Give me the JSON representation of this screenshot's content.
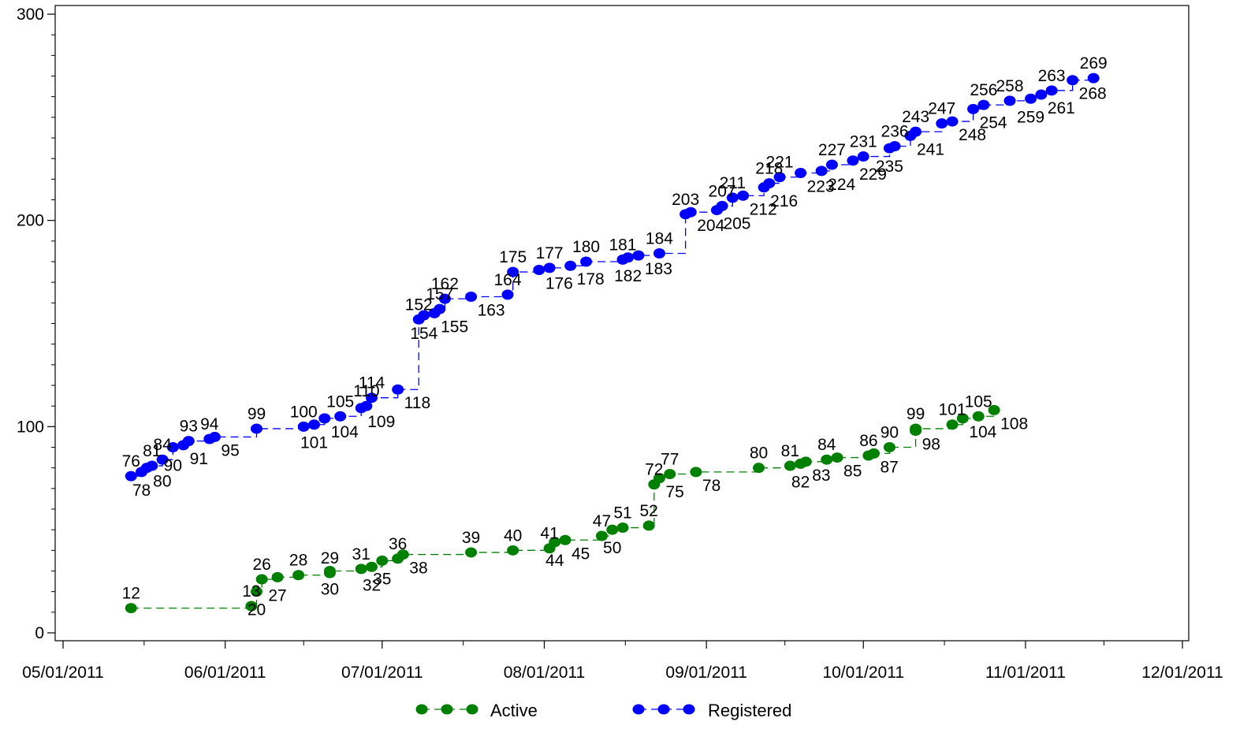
{
  "chart_data": {
    "type": "line",
    "title": "",
    "xlabel": "",
    "ylabel": "",
    "x_ticks": [
      "05/01/2011",
      "06/01/2011",
      "07/01/2011",
      "08/01/2011",
      "09/01/2011",
      "10/01/2011",
      "11/01/2011",
      "12/01/2011"
    ],
    "y_ticks": [
      "0",
      "100",
      "200",
      "300"
    ],
    "xlim": [
      "2011-05-01",
      "2011-12-01"
    ],
    "ylim": [
      0,
      300
    ],
    "step": true,
    "legend_position": "bottom",
    "series": [
      {
        "name": "Active",
        "color": "#008000",
        "points": [
          [
            "2011-05-14",
            12,
            "12",
            "above"
          ],
          [
            "2011-06-06",
            13,
            "13",
            "above"
          ],
          [
            "2011-06-07",
            20,
            "20",
            "below"
          ],
          [
            "2011-06-08",
            26,
            "26",
            "above"
          ],
          [
            "2011-06-11",
            27,
            "27",
            "below"
          ],
          [
            "2011-06-15",
            28,
            "28",
            "above"
          ],
          [
            "2011-06-21",
            29,
            "29",
            "above"
          ],
          [
            "2011-06-21",
            30,
            "30",
            "below"
          ],
          [
            "2011-06-27",
            31,
            "31",
            "above"
          ],
          [
            "2011-06-29",
            32,
            "32",
            "below"
          ],
          [
            "2011-07-01",
            35,
            "35",
            "below"
          ],
          [
            "2011-07-04",
            36,
            "36",
            "above"
          ],
          [
            "2011-07-05",
            38,
            "38",
            "right"
          ],
          [
            "2011-07-18",
            39,
            "39",
            "above"
          ],
          [
            "2011-07-26",
            40,
            "40",
            "above"
          ],
          [
            "2011-08-02",
            41,
            "41",
            "above"
          ],
          [
            "2011-08-03",
            44,
            "44",
            "below"
          ],
          [
            "2011-08-05",
            45,
            "45",
            "right"
          ],
          [
            "2011-08-12",
            47,
            "47",
            "above"
          ],
          [
            "2011-08-14",
            50,
            "50",
            "below"
          ],
          [
            "2011-08-16",
            51,
            "51",
            "above"
          ],
          [
            "2011-08-21",
            52,
            "52",
            "above"
          ],
          [
            "2011-08-22",
            72,
            "72",
            "above"
          ],
          [
            "2011-08-23",
            75,
            "75",
            "right"
          ],
          [
            "2011-08-25",
            77,
            "77",
            "above"
          ],
          [
            "2011-08-30",
            78,
            "78",
            "right"
          ],
          [
            "2011-09-11",
            80,
            "80",
            "above"
          ],
          [
            "2011-09-17",
            81,
            "81",
            "above"
          ],
          [
            "2011-09-19",
            82,
            "82",
            "below"
          ],
          [
            "2011-09-20",
            83,
            "83",
            "right"
          ],
          [
            "2011-09-24",
            84,
            "84",
            "above"
          ],
          [
            "2011-09-26",
            85,
            "85",
            "right"
          ],
          [
            "2011-10-02",
            86,
            "86",
            "above"
          ],
          [
            "2011-10-03",
            87,
            "87",
            "right"
          ],
          [
            "2011-10-06",
            90,
            "90",
            "above"
          ],
          [
            "2011-10-11",
            98,
            "98",
            "right"
          ],
          [
            "2011-10-11",
            99,
            "99",
            "above"
          ],
          [
            "2011-10-18",
            101,
            "101",
            "above"
          ],
          [
            "2011-10-20",
            104,
            "104",
            "right"
          ],
          [
            "2011-10-23",
            105,
            "105",
            "above"
          ],
          [
            "2011-10-26",
            108,
            "108",
            "right"
          ]
        ]
      },
      {
        "name": "Registered",
        "color": "#0000FF",
        "points": [
          [
            "2011-05-14",
            76,
            "76",
            "above"
          ],
          [
            "2011-05-16",
            78,
            "78",
            "below"
          ],
          [
            "2011-05-17",
            80,
            "80",
            "right"
          ],
          [
            "2011-05-18",
            81,
            "81",
            "above"
          ],
          [
            "2011-05-20",
            84,
            "84",
            "above"
          ],
          [
            "2011-05-22",
            90,
            "90",
            "below"
          ],
          [
            "2011-05-24",
            91,
            "91",
            "right"
          ],
          [
            "2011-05-25",
            93,
            "93",
            "above"
          ],
          [
            "2011-05-29",
            94,
            "94",
            "above"
          ],
          [
            "2011-05-30",
            95,
            "95",
            "right"
          ],
          [
            "2011-06-07",
            99,
            "99",
            "above"
          ],
          [
            "2011-06-16",
            100,
            "100",
            "above"
          ],
          [
            "2011-06-18",
            101,
            "101",
            "below"
          ],
          [
            "2011-06-20",
            104,
            "104",
            "right"
          ],
          [
            "2011-06-23",
            105,
            "105",
            "above"
          ],
          [
            "2011-06-27",
            109,
            "109",
            "right"
          ],
          [
            "2011-06-28",
            110,
            "110",
            "above"
          ],
          [
            "2011-06-29",
            114,
            "114",
            "above"
          ],
          [
            "2011-07-04",
            118,
            "118",
            "right"
          ],
          [
            "2011-07-08",
            152,
            "152",
            "above"
          ],
          [
            "2011-07-09",
            154,
            "154",
            "below"
          ],
          [
            "2011-07-11",
            155,
            "155",
            "right"
          ],
          [
            "2011-07-12",
            157,
            "157",
            "above"
          ],
          [
            "2011-07-13",
            162,
            "162",
            "above"
          ],
          [
            "2011-07-18",
            163,
            "163",
            "right"
          ],
          [
            "2011-07-25",
            164,
            "164",
            "above"
          ],
          [
            "2011-07-26",
            175,
            "175",
            "above"
          ],
          [
            "2011-07-31",
            176,
            "176",
            "right"
          ],
          [
            "2011-08-02",
            177,
            "177",
            "above"
          ],
          [
            "2011-08-06",
            178,
            "178",
            "right"
          ],
          [
            "2011-08-09",
            180,
            "180",
            "above"
          ],
          [
            "2011-08-16",
            181,
            "181",
            "above"
          ],
          [
            "2011-08-17",
            182,
            "182",
            "below"
          ],
          [
            "2011-08-19",
            183,
            "183",
            "right"
          ],
          [
            "2011-08-23",
            184,
            "184",
            "above"
          ],
          [
            "2011-08-28",
            203,
            "203",
            "above"
          ],
          [
            "2011-08-29",
            204,
            "204",
            "right"
          ],
          [
            "2011-09-03",
            205,
            "205",
            "right"
          ],
          [
            "2011-09-04",
            207,
            "207",
            "above"
          ],
          [
            "2011-09-06",
            211,
            "211",
            "above"
          ],
          [
            "2011-09-08",
            212,
            "212",
            "right"
          ],
          [
            "2011-09-12",
            216,
            "216",
            "right"
          ],
          [
            "2011-09-13",
            218,
            "218",
            "above"
          ],
          [
            "2011-09-15",
            221,
            "221",
            "above"
          ],
          [
            "2011-09-19",
            223,
            "223",
            "right"
          ],
          [
            "2011-09-23",
            224,
            "224",
            "right"
          ],
          [
            "2011-09-25",
            227,
            "227",
            "above"
          ],
          [
            "2011-09-29",
            229,
            "229",
            "right"
          ],
          [
            "2011-10-01",
            231,
            "231",
            "above"
          ],
          [
            "2011-10-06",
            235,
            "235",
            "below"
          ],
          [
            "2011-10-07",
            236,
            "236",
            "above"
          ],
          [
            "2011-10-10",
            241,
            "241",
            "right"
          ],
          [
            "2011-10-11",
            243,
            "243",
            "above"
          ],
          [
            "2011-10-16",
            247,
            "247",
            "above"
          ],
          [
            "2011-10-18",
            248,
            "248",
            "right"
          ],
          [
            "2011-10-22",
            254,
            "254",
            "right"
          ],
          [
            "2011-10-24",
            256,
            "256",
            "above"
          ],
          [
            "2011-10-29",
            258,
            "258",
            "above"
          ],
          [
            "2011-11-02",
            259,
            "259",
            "below"
          ],
          [
            "2011-11-04",
            261,
            "261",
            "right"
          ],
          [
            "2011-11-06",
            263,
            "263",
            "above"
          ],
          [
            "2011-11-10",
            268,
            "268",
            "right"
          ],
          [
            "2011-11-14",
            269,
            "269",
            "above"
          ]
        ]
      }
    ]
  }
}
